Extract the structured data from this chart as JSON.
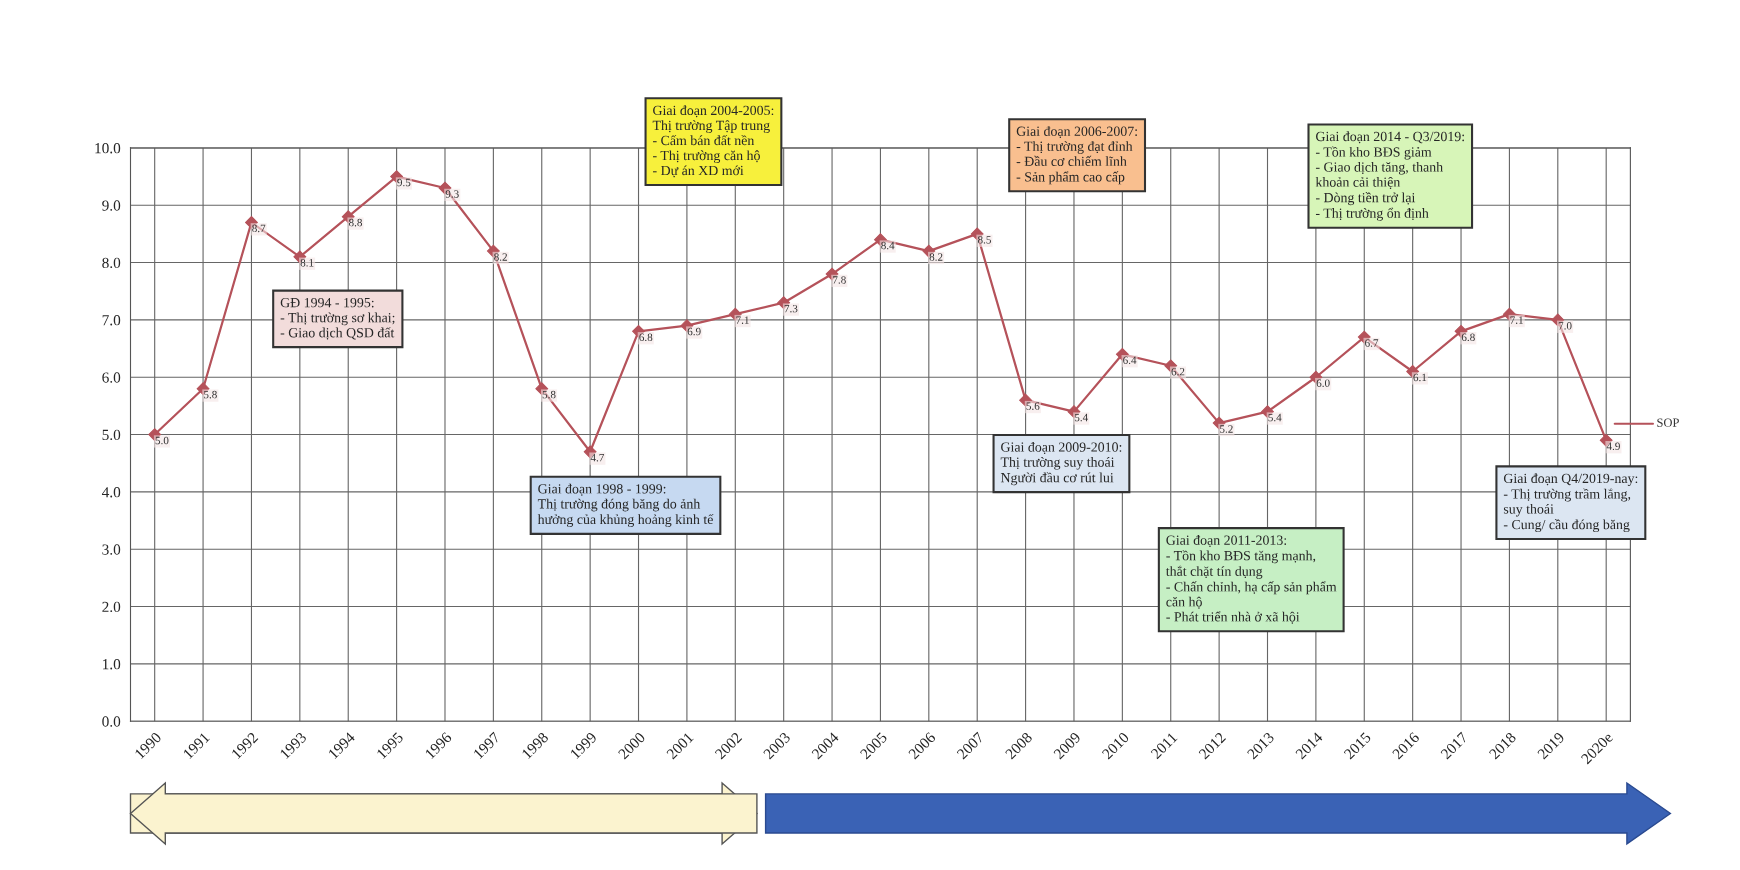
{
  "chart_data": {
    "type": "line",
    "categories": [
      "1990",
      "1991",
      "1992",
      "1993",
      "1994",
      "1995",
      "1996",
      "1997",
      "1998",
      "1999",
      "2000",
      "2001",
      "2002",
      "2003",
      "2004",
      "2005",
      "2006",
      "2007",
      "2008",
      "2009",
      "2010",
      "2011",
      "2012",
      "2013",
      "2014",
      "2015",
      "2016",
      "2017",
      "2018",
      "2019",
      "2020e"
    ],
    "series": [
      {
        "color": "#b5525a",
        "values": [
          5.0,
          5.8,
          8.7,
          8.1,
          8.8,
          9.5,
          9.3,
          8.2,
          5.8,
          4.7,
          6.8,
          6.9,
          7.1,
          7.3,
          7.8,
          8.4,
          8.2,
          8.5,
          5.6,
          5.4,
          6.4,
          6.2,
          5.2,
          5.4,
          6.0,
          6.7,
          6.1,
          6.8,
          7.1,
          7.0,
          4.9
        ],
        "value_labels": [
          "5.0",
          "5.8",
          "8.7",
          "8.1",
          "8.8",
          "9.5",
          "9.3",
          "8.2",
          "5.8",
          "4.7",
          "6.8",
          "6.9",
          "7.1",
          "7.3",
          "7.8",
          "8.4",
          "8.2",
          "8.5",
          "5.6",
          "5.4",
          "6.4",
          "6.2",
          "5.2",
          "5.4",
          "6.0",
          "6.7",
          "6.1",
          "6.8",
          "7.1",
          "7.0",
          "4.9"
        ]
      }
    ],
    "ylim": [
      0,
      10
    ],
    "yticks": [
      {
        "value": 0,
        "label": "0.0"
      },
      {
        "value": 1,
        "label": "1.0"
      },
      {
        "value": 2,
        "label": "2.0"
      },
      {
        "value": 3,
        "label": "3.0"
      },
      {
        "value": 4,
        "label": "4.0"
      },
      {
        "value": 5,
        "label": "5.0"
      },
      {
        "value": 6,
        "label": "6.0"
      },
      {
        "value": 7,
        "label": "7.0"
      },
      {
        "value": 8,
        "label": "8.0"
      },
      {
        "value": 9,
        "label": "9.0"
      },
      {
        "value": 10,
        "label": "10.0"
      }
    ],
    "grid": true,
    "marker": "diamond",
    "line_style": "solid",
    "annotations": [
      "GĐ 1994 - 1995:\n- Thị trường sơ khai;\n- Giao dịch QSD đất",
      "Giai đoạn 1998 - 1999:\nThị trường đóng băng do ảnh\nhưởng của khủng hoảng kinh tế",
      "Giai đoạn 2004-2005:\nThị trường Tập trung\n- Cấm bán đất nền\n- Thị trường căn hộ\n- Dự án XD mới",
      "Giai đoạn 2006-2007:\n- Thị trường đạt đỉnh\n- Đầu cơ chiếm lĩnh\n- Sản phẩm cao cấp",
      "Giai đoạn 2014 - Q3/2019:\n- Tồn kho BĐS giảm\n- Giao dịch tăng, thanh\nkhoản cải thiện\n- Dòng tiền trở lại\n- Thị trường ổn định",
      "Giai đoạn 2009-2010:\nThị trường suy thoái\nNgười đầu cơ rút lui",
      "Giai đoạn 2011-2013:\n- Tồn kho BĐS tăng mạnh,\nthắt chặt tín dụng\n- Chấn chỉnh, hạ cấp sản phẩm\ncăn hộ\n- Phát triển nhà ở xã hội",
      "Giai đoạn Q4/2019-nay:\n- Thị trường trầm lắng,\nsuy thoái\n- Cung/ cầu đóng băng",
      "SOP"
    ]
  }
}
